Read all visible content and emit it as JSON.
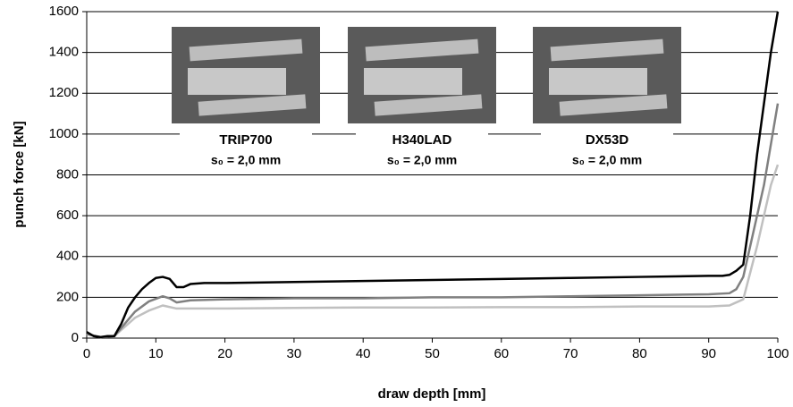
{
  "chart_data": {
    "type": "line",
    "x_label": "draw depth [mm]",
    "y_label": "punch force [kN]",
    "xlim": [
      0,
      100
    ],
    "xticks": [
      0,
      10,
      20,
      30,
      40,
      50,
      60,
      70,
      80,
      90,
      100
    ],
    "ylim": [
      0,
      1600
    ],
    "yticks": [
      0,
      200,
      400,
      600,
      800,
      1000,
      1200,
      1400,
      1600
    ],
    "grid": true,
    "series": [
      {
        "name": "TRIP700",
        "subtitle": "s₀ = 2,0 mm",
        "color": "#000000",
        "x": [
          0,
          1,
          2,
          3,
          4,
          5,
          6,
          7,
          8,
          9,
          10,
          11,
          12,
          13,
          14,
          15,
          17,
          20,
          30,
          40,
          50,
          60,
          70,
          80,
          90,
          92,
          93,
          94,
          95,
          96,
          97,
          98,
          99,
          100
        ],
        "values": [
          30,
          10,
          5,
          10,
          10,
          70,
          150,
          200,
          240,
          270,
          295,
          300,
          290,
          250,
          250,
          265,
          270,
          270,
          275,
          280,
          285,
          290,
          295,
          300,
          305,
          305,
          310,
          330,
          360,
          600,
          900,
          1150,
          1400,
          1600
        ]
      },
      {
        "name": "H340LAD",
        "subtitle": "s₀ = 2,0 mm",
        "color": "#808080",
        "x": [
          0,
          2,
          4,
          5,
          7,
          9,
          11,
          12,
          13,
          15,
          20,
          30,
          40,
          50,
          60,
          70,
          80,
          90,
          93,
          94,
          95,
          96,
          97,
          98,
          99,
          100
        ],
        "values": [
          20,
          5,
          10,
          50,
          130,
          180,
          205,
          195,
          175,
          185,
          190,
          195,
          195,
          200,
          200,
          205,
          210,
          215,
          220,
          240,
          300,
          450,
          600,
          750,
          950,
          1150
        ]
      },
      {
        "name": "DX53D",
        "subtitle": "s₀ = 2,0 mm",
        "color": "#c0c0c0",
        "x": [
          0,
          2,
          4,
          5,
          7,
          9,
          11,
          13,
          15,
          20,
          30,
          40,
          50,
          60,
          70,
          80,
          90,
          93,
          94,
          95,
          96,
          97,
          98,
          99,
          100
        ],
        "values": [
          20,
          5,
          10,
          40,
          100,
          135,
          160,
          145,
          145,
          145,
          148,
          150,
          150,
          152,
          152,
          155,
          155,
          160,
          175,
          190,
          320,
          450,
          600,
          750,
          850
        ]
      }
    ]
  }
}
